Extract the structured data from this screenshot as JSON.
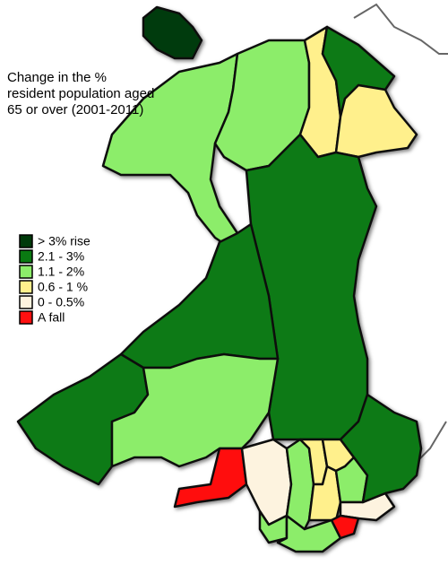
{
  "title": [
    "Change in the %",
    "resident population aged",
    "65 or over (2001-2011)"
  ],
  "legend": [
    {
      "label": "> 3% rise",
      "color": "#003a0a"
    },
    {
      "label": "2.1 - 3%",
      "color": "#0a7a12"
    },
    {
      "label": "1.1 - 2%",
      "color": "#8ced6a"
    },
    {
      "label": "0.6 - 1 %",
      "color": "#fff08c"
    },
    {
      "label": "0 - 0.5%",
      "color": "#fdf3df"
    },
    {
      "label": "A fall",
      "color": "#ff1010"
    }
  ]
}
